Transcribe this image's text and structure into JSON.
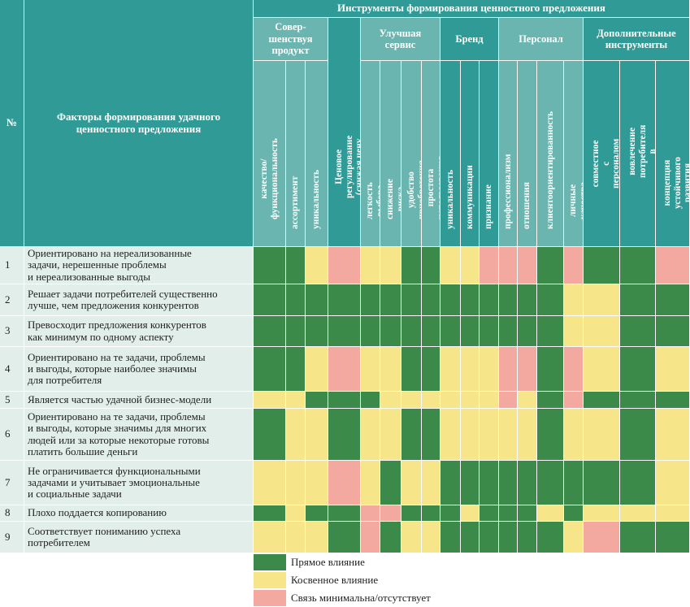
{
  "colors": {
    "header_dark": "#2f9a96",
    "header_light": "#6ab5b0",
    "body_bg": "#e2eeea",
    "G": "#3b8a4a",
    "Y": "#f7e58a",
    "P": "#f4a9a0"
  },
  "header": {
    "num": "№",
    "factors": "Факторы формирования удачного ценностного предложения",
    "tools": "Инструменты формирования ценностного предложения"
  },
  "groups": [
    {
      "label": "Совер-\nшенствуя\nпродукт",
      "cols": [
        0,
        1,
        2
      ]
    },
    {
      "label": "",
      "cols": [
        3
      ]
    },
    {
      "label": "Улучшая\nсервис",
      "cols": [
        4,
        5,
        6,
        7
      ]
    },
    {
      "label": "Бренд",
      "cols": [
        8,
        9,
        10
      ]
    },
    {
      "label": "Персонал",
      "cols": [
        11,
        12,
        13,
        14
      ]
    },
    {
      "label": "Дополнительные\nинструменты",
      "cols": [
        15,
        16,
        17
      ]
    }
  ],
  "columns": [
    "качество/\nфункциональность",
    "ассортимент",
    "уникальность",
    "Ценовое регулирование\n(снижая цену продукта)",
    "легкость выбора",
    "снижение риска",
    "удобство приобретения",
    "простота использования",
    "уникальность",
    "коммуникации",
    "признание",
    "профессионализм",
    "отношения",
    "клиентоориентированность",
    "личные качества",
    "совместное с персоналом\nсоздание ценности",
    "вовлечение потребителя\nв совместное создание ценности",
    "концепция устойчивого\nразвития"
  ],
  "rows": [
    {
      "num": "1",
      "text": "Ориентировано на нереализованные\nзадачи, нерешенные проблемы\nи нереализованные выгоды",
      "cells": [
        "G",
        "G",
        "Y",
        "P",
        "Y",
        "Y",
        "G",
        "G",
        "Y",
        "Y",
        "P",
        "P",
        "P",
        "G",
        "P",
        "G",
        "G",
        "P"
      ]
    },
    {
      "num": "2",
      "text": "Решает задачи потребителей существенно\nлучше, чем предложения конкурентов",
      "cells": [
        "G",
        "G",
        "G",
        "G",
        "G",
        "G",
        "G",
        "G",
        "G",
        "G",
        "G",
        "G",
        "G",
        "G",
        "Y",
        "Y",
        "G",
        "G"
      ]
    },
    {
      "num": "3",
      "text": "Превосходит предложения конкурентов\nкак минимум по одному аспекту",
      "cells": [
        "G",
        "G",
        "G",
        "G",
        "G",
        "G",
        "G",
        "G",
        "G",
        "G",
        "G",
        "G",
        "G",
        "G",
        "Y",
        "Y",
        "G",
        "G"
      ]
    },
    {
      "num": "4",
      "text": "Ориентировано на те задачи, проблемы\nи выгоды, которые наиболее значимы\nдля потребителя",
      "cells": [
        "G",
        "G",
        "Y",
        "P",
        "Y",
        "Y",
        "G",
        "G",
        "Y",
        "Y",
        "Y",
        "P",
        "P",
        "G",
        "P",
        "Y",
        "G",
        "Y"
      ]
    },
    {
      "num": "5",
      "text": "Является частью удачной бизнес-модели",
      "cells": [
        "Y",
        "Y",
        "G",
        "G",
        "G",
        "Y",
        "Y",
        "Y",
        "Y",
        "Y",
        "Y",
        "P",
        "Y",
        "G",
        "P",
        "G",
        "G",
        "G"
      ]
    },
    {
      "num": "6",
      "text": "Ориентировано на те задачи, проблемы\nи выгоды, которые значимы для многих\nлюдей или за которые некоторые готовы\nплатить большие деньги",
      "cells": [
        "G",
        "Y",
        "Y",
        "G",
        "Y",
        "Y",
        "G",
        "G",
        "Y",
        "Y",
        "Y",
        "Y",
        "Y",
        "G",
        "Y",
        "Y",
        "G",
        "Y"
      ]
    },
    {
      "num": "7",
      "text": "Не ограничивается функциональными\nзадачами и учитывает эмоциональные\nи социальные задачи",
      "cells": [
        "Y",
        "Y",
        "Y",
        "P",
        "Y",
        "G",
        "Y",
        "Y",
        "G",
        "G",
        "G",
        "G",
        "G",
        "G",
        "G",
        "G",
        "G",
        "Y"
      ]
    },
    {
      "num": "8",
      "text": "Плохо поддается копированию",
      "cells": [
        "G",
        "Y",
        "G",
        "G",
        "P",
        "P",
        "G",
        "G",
        "G",
        "Y",
        "G",
        "G",
        "G",
        "Y",
        "G",
        "Y",
        "Y",
        "Y"
      ]
    },
    {
      "num": "9",
      "text": "Соответствует пониманию успеха\nпотребителем",
      "cells": [
        "Y",
        "Y",
        "Y",
        "G",
        "P",
        "G",
        "Y",
        "Y",
        "G",
        "G",
        "G",
        "G",
        "G",
        "G",
        "Y",
        "P",
        "G",
        "G"
      ]
    }
  ],
  "legend": [
    {
      "color": "G",
      "label": "Прямое влияние"
    },
    {
      "color": "Y",
      "label": "Косвенное влияние"
    },
    {
      "color": "P",
      "label": "Связь минимальна/отсутствует"
    }
  ]
}
